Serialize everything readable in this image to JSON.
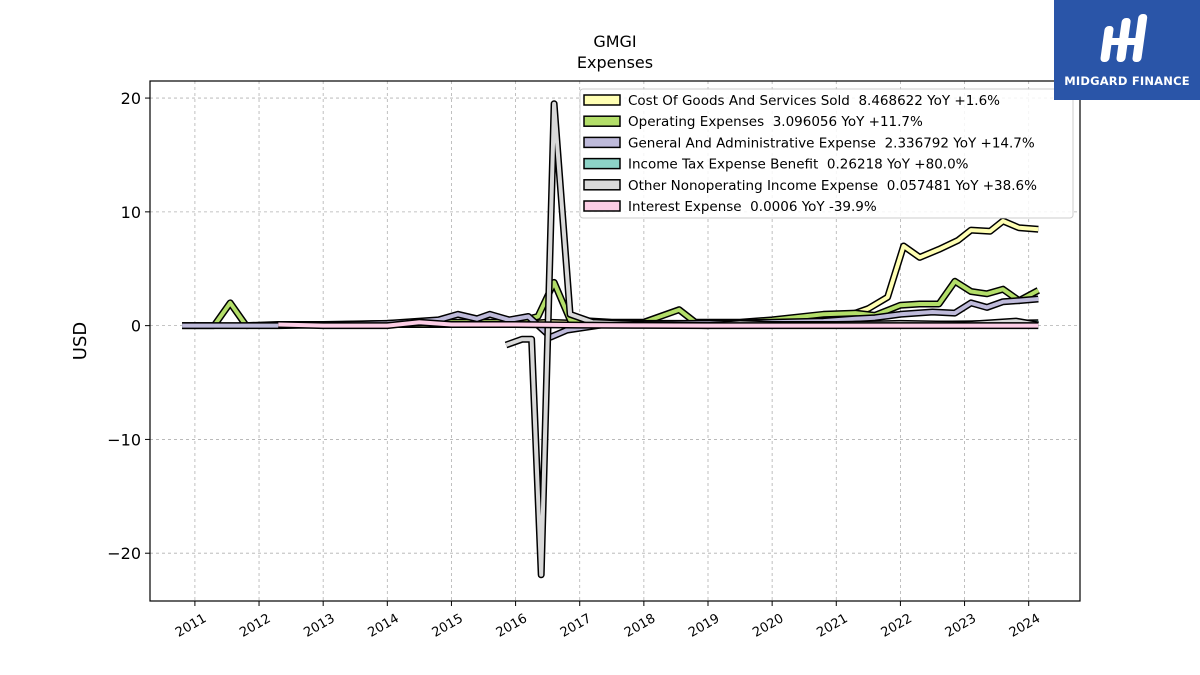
{
  "brand": {
    "name": "MIDGARD FINANCE",
    "bg_color": "#2a55a8"
  },
  "chart_data": {
    "type": "line",
    "title": "GMGI",
    "subtitle": "Expenses",
    "xlabel": "",
    "ylabel": "USD",
    "ylim": [
      -24.2,
      21.5
    ],
    "xlim": [
      2010.3,
      2024.8
    ],
    "yticks": [
      -20,
      -10,
      0,
      10,
      20
    ],
    "ytick_labels": [
      "−20",
      "−10",
      "0",
      "10",
      "20"
    ],
    "xticks": [
      2011,
      2012,
      2013,
      2014,
      2015,
      2016,
      2017,
      2018,
      2019,
      2020,
      2021,
      2022,
      2023,
      2024
    ],
    "xtick_labels": [
      "2011",
      "2012",
      "2013",
      "2014",
      "2015",
      "2016",
      "2017",
      "2018",
      "2019",
      "2020",
      "2021",
      "2022",
      "2023",
      "2024"
    ],
    "grid": true,
    "legend_position": "top-right",
    "series": [
      {
        "name": "Cost Of Goods And Services Sold",
        "legend_label": "Cost Of Goods And Services Sold  8.468622 YoY +1.6%",
        "color": "#ffffb3",
        "points": [
          [
            2012.3,
            0.1
          ],
          [
            2013.0,
            0.05
          ],
          [
            2014.0,
            0.1
          ],
          [
            2015.0,
            0.1
          ],
          [
            2016.0,
            0.1
          ],
          [
            2016.5,
            0.3
          ],
          [
            2017.0,
            0.2
          ],
          [
            2018.0,
            0.15
          ],
          [
            2019.0,
            0.1
          ],
          [
            2020.0,
            0.3
          ],
          [
            2021.0,
            0.5
          ],
          [
            2021.5,
            1.5
          ],
          [
            2021.8,
            2.5
          ],
          [
            2022.05,
            7.0
          ],
          [
            2022.3,
            6.0
          ],
          [
            2022.6,
            6.7
          ],
          [
            2022.9,
            7.5
          ],
          [
            2023.1,
            8.4
          ],
          [
            2023.4,
            8.3
          ],
          [
            2023.6,
            9.2
          ],
          [
            2023.85,
            8.6
          ],
          [
            2024.15,
            8.47
          ]
        ]
      },
      {
        "name": "Operating Expenses",
        "legend_label": "Operating Expenses  3.096056 YoY +11.7%",
        "color": "#b3de69",
        "points": [
          [
            2010.8,
            0.0
          ],
          [
            2011.3,
            0.0
          ],
          [
            2011.55,
            2.0
          ],
          [
            2011.8,
            0.0
          ],
          [
            2012.3,
            0.1
          ],
          [
            2013.0,
            0.1
          ],
          [
            2014.0,
            0.2
          ],
          [
            2015.0,
            0.3
          ],
          [
            2016.0,
            0.3
          ],
          [
            2016.35,
            0.8
          ],
          [
            2016.6,
            3.8
          ],
          [
            2016.85,
            0.5
          ],
          [
            2017.5,
            0.3
          ],
          [
            2018.0,
            0.3
          ],
          [
            2018.55,
            1.4
          ],
          [
            2018.8,
            0.3
          ],
          [
            2019.5,
            0.3
          ],
          [
            2020.0,
            0.5
          ],
          [
            2020.8,
            1.0
          ],
          [
            2021.3,
            1.1
          ],
          [
            2021.6,
            0.9
          ],
          [
            2022.0,
            1.8
          ],
          [
            2022.3,
            1.9
          ],
          [
            2022.6,
            1.9
          ],
          [
            2022.85,
            3.9
          ],
          [
            2023.1,
            3.0
          ],
          [
            2023.35,
            2.8
          ],
          [
            2023.6,
            3.2
          ],
          [
            2023.85,
            2.2
          ],
          [
            2024.15,
            3.1
          ]
        ]
      },
      {
        "name": "General And Administrative Expense",
        "legend_label": "General And Administrative Expense  2.336792 YoY +14.7%",
        "color": "#bebada",
        "points": [
          [
            2010.8,
            0.0
          ],
          [
            2011.5,
            0.0
          ],
          [
            2012.3,
            0.0
          ],
          [
            2013.3,
            0.1
          ],
          [
            2014.0,
            0.2
          ],
          [
            2014.8,
            0.5
          ],
          [
            2015.1,
            1.0
          ],
          [
            2015.4,
            0.6
          ],
          [
            2015.6,
            1.0
          ],
          [
            2015.9,
            0.5
          ],
          [
            2016.2,
            0.8
          ],
          [
            2016.55,
            -1.0
          ],
          [
            2016.8,
            -0.4
          ],
          [
            2017.5,
            0.2
          ],
          [
            2018.3,
            0.2
          ],
          [
            2019.0,
            0.2
          ],
          [
            2020.0,
            0.3
          ],
          [
            2020.8,
            0.4
          ],
          [
            2021.3,
            0.6
          ],
          [
            2021.6,
            0.7
          ],
          [
            2022.0,
            1.0
          ],
          [
            2022.5,
            1.2
          ],
          [
            2022.85,
            1.1
          ],
          [
            2023.1,
            2.0
          ],
          [
            2023.35,
            1.6
          ],
          [
            2023.6,
            2.1
          ],
          [
            2023.85,
            2.2
          ],
          [
            2024.15,
            2.34
          ]
        ]
      },
      {
        "name": "Income Tax Expense Benefit",
        "legend_label": "Income Tax Expense Benefit  0.26218 YoY +80.0%",
        "color": "#8dd3c7",
        "points": [
          [
            2021.0,
            0.05
          ],
          [
            2022.0,
            0.1
          ],
          [
            2023.0,
            0.15
          ],
          [
            2023.6,
            0.2
          ],
          [
            2024.15,
            0.26
          ]
        ]
      },
      {
        "name": "Other Nonoperating Income Expense",
        "legend_label": "Other Nonoperating Income Expense  0.057481 YoY +38.6%",
        "color": "#d9d9d9",
        "points": [
          [
            2015.85,
            -1.7
          ],
          [
            2016.1,
            -1.2
          ],
          [
            2016.25,
            -1.2
          ],
          [
            2016.4,
            -21.9
          ],
          [
            2016.6,
            19.5
          ],
          [
            2016.85,
            1.0
          ],
          [
            2017.2,
            0.3
          ],
          [
            2018.0,
            0.1
          ],
          [
            2019.0,
            0.0
          ],
          [
            2019.5,
            0.2
          ],
          [
            2020.0,
            0.1
          ],
          [
            2021.0,
            0.1
          ],
          [
            2022.0,
            0.2
          ],
          [
            2023.0,
            0.1
          ],
          [
            2023.8,
            0.4
          ],
          [
            2024.15,
            0.06
          ]
        ]
      },
      {
        "name": "Interest Expense",
        "legend_label": "Interest Expense  0.0006 YoY -39.9%",
        "color": "#fccde5",
        "points": [
          [
            2012.3,
            0.1
          ],
          [
            2013.0,
            0.0
          ],
          [
            2014.0,
            0.0
          ],
          [
            2014.5,
            0.3
          ],
          [
            2015.0,
            0.1
          ],
          [
            2016.0,
            0.1
          ],
          [
            2017.0,
            0.05
          ],
          [
            2018.0,
            0.02
          ],
          [
            2019.0,
            0.0
          ],
          [
            2020.0,
            0.0
          ],
          [
            2021.0,
            0.0
          ],
          [
            2022.0,
            0.0
          ],
          [
            2023.0,
            0.0
          ],
          [
            2024.15,
            0.0006
          ]
        ]
      }
    ]
  }
}
